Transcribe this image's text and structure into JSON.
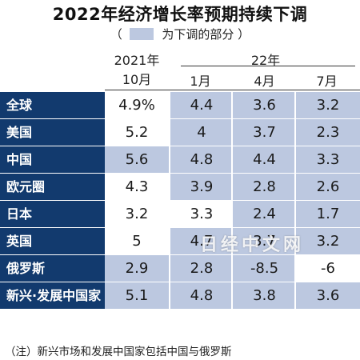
{
  "title": "2022年经济增长率预期持续下调",
  "legend": {
    "open": "（",
    "label": "为下调的部分",
    "close": "）",
    "swatch_color": "#bcc8e0"
  },
  "header": {
    "group_2021": "2021年",
    "group_22": "22年",
    "columns": [
      "10月",
      "1月",
      "4月",
      "7月"
    ]
  },
  "colors": {
    "label_bg": "#123a6e",
    "downgrade_fill": "#bcc8e0",
    "normal_fill": "#ffffff"
  },
  "chart_data": {
    "type": "table",
    "title": "2022年经济增长率预期持续下调",
    "columns": [
      "2021年10月",
      "22年1月",
      "22年4月",
      "22年7月"
    ],
    "rows": [
      {
        "label": "全球",
        "values": [
          "4.9%",
          "4.4",
          "3.6",
          "3.2"
        ],
        "downgraded": [
          false,
          true,
          true,
          true
        ]
      },
      {
        "label": "美国",
        "values": [
          "5.2",
          "4",
          "3.7",
          "2.3"
        ],
        "downgraded": [
          false,
          true,
          true,
          true
        ]
      },
      {
        "label": "中国",
        "values": [
          "5.6",
          "4.8",
          "4.4",
          "3.3"
        ],
        "downgraded": [
          true,
          true,
          true,
          true
        ]
      },
      {
        "label": "欧元圈",
        "values": [
          "4.3",
          "3.9",
          "2.8",
          "2.6"
        ],
        "downgraded": [
          false,
          true,
          true,
          true
        ]
      },
      {
        "label": "日本",
        "values": [
          "3.2",
          "3.3",
          "2.4",
          "1.7"
        ],
        "downgraded": [
          false,
          false,
          true,
          true
        ]
      },
      {
        "label": "英国",
        "values": [
          "5",
          "4.7",
          "3.7",
          "3.2"
        ],
        "downgraded": [
          false,
          true,
          true,
          true
        ]
      },
      {
        "label": "俄罗斯",
        "values": [
          "2.9",
          "2.8",
          "-8.5",
          "-6"
        ],
        "downgraded": [
          true,
          true,
          true,
          false
        ]
      },
      {
        "label": "新兴·发展中国家",
        "values": [
          "5.1",
          "4.8",
          "3.8",
          "3.6"
        ],
        "downgraded": [
          true,
          true,
          true,
          true
        ]
      }
    ]
  },
  "note": "（注）新兴市场和发展中国家包括中国与俄罗斯",
  "watermark": "日经中文网"
}
